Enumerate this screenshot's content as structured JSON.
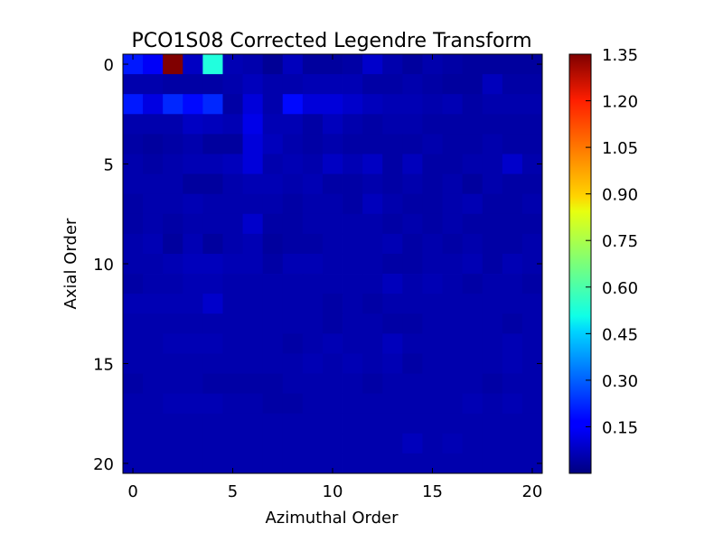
{
  "chart_data": {
    "type": "heatmap",
    "title": "PCO1S08 Corrected Legendre Transform",
    "xlabel": "Azimuthal Order",
    "ylabel": "Axial Order",
    "x_ticks": [
      0,
      5,
      10,
      15,
      20
    ],
    "y_ticks": [
      0,
      5,
      10,
      15,
      20
    ],
    "x_range": [
      0,
      20
    ],
    "y_range": [
      0,
      20
    ],
    "colormap": "jet",
    "colorbar": {
      "vmin": 0.0,
      "vmax": 1.35,
      "ticks": [
        0.15,
        0.3,
        0.45,
        0.6,
        0.75,
        0.9,
        1.05,
        1.2,
        1.35
      ],
      "tick_labels": [
        "0.15",
        "0.30",
        "0.45",
        "0.60",
        "0.75",
        "0.90",
        "1.05",
        "1.20",
        "1.35"
      ]
    },
    "values": [
      [
        0.2,
        0.16,
        1.35,
        0.09,
        0.55,
        0.07,
        0.06,
        0.03,
        0.08,
        0.04,
        0.04,
        0.05,
        0.1,
        0.06,
        0.04,
        0.06,
        0.05,
        0.04,
        0.04,
        0.04,
        0.04
      ],
      [
        0.06,
        0.06,
        0.05,
        0.05,
        0.05,
        0.06,
        0.08,
        0.06,
        0.06,
        0.07,
        0.07,
        0.07,
        0.05,
        0.05,
        0.06,
        0.05,
        0.04,
        0.04,
        0.08,
        0.05,
        0.05
      ],
      [
        0.2,
        0.13,
        0.22,
        0.18,
        0.22,
        0.05,
        0.12,
        0.06,
        0.18,
        0.12,
        0.12,
        0.1,
        0.08,
        0.07,
        0.07,
        0.06,
        0.07,
        0.05,
        0.06,
        0.06,
        0.06
      ],
      [
        0.06,
        0.06,
        0.06,
        0.09,
        0.08,
        0.07,
        0.14,
        0.07,
        0.07,
        0.05,
        0.08,
        0.06,
        0.05,
        0.06,
        0.06,
        0.05,
        0.05,
        0.05,
        0.05,
        0.05,
        0.05
      ],
      [
        0.05,
        0.04,
        0.05,
        0.06,
        0.04,
        0.04,
        0.12,
        0.08,
        0.06,
        0.05,
        0.06,
        0.05,
        0.05,
        0.05,
        0.05,
        0.06,
        0.05,
        0.05,
        0.06,
        0.05,
        0.05
      ],
      [
        0.06,
        0.05,
        0.06,
        0.07,
        0.07,
        0.08,
        0.12,
        0.06,
        0.07,
        0.06,
        0.09,
        0.07,
        0.09,
        0.05,
        0.08,
        0.05,
        0.05,
        0.06,
        0.06,
        0.1,
        0.06
      ],
      [
        0.06,
        0.06,
        0.06,
        0.04,
        0.04,
        0.06,
        0.07,
        0.07,
        0.06,
        0.07,
        0.05,
        0.05,
        0.06,
        0.05,
        0.06,
        0.05,
        0.06,
        0.04,
        0.06,
        0.05,
        0.05
      ],
      [
        0.05,
        0.06,
        0.06,
        0.07,
        0.06,
        0.06,
        0.06,
        0.06,
        0.05,
        0.06,
        0.06,
        0.05,
        0.08,
        0.06,
        0.05,
        0.05,
        0.06,
        0.07,
        0.05,
        0.05,
        0.06
      ],
      [
        0.05,
        0.06,
        0.05,
        0.06,
        0.06,
        0.06,
        0.1,
        0.05,
        0.05,
        0.06,
        0.06,
        0.06,
        0.06,
        0.05,
        0.06,
        0.05,
        0.06,
        0.05,
        0.05,
        0.05,
        0.05
      ],
      [
        0.06,
        0.07,
        0.04,
        0.07,
        0.04,
        0.06,
        0.07,
        0.04,
        0.05,
        0.05,
        0.06,
        0.06,
        0.06,
        0.07,
        0.05,
        0.06,
        0.05,
        0.06,
        0.05,
        0.05,
        0.06
      ],
      [
        0.06,
        0.06,
        0.07,
        0.08,
        0.08,
        0.07,
        0.07,
        0.05,
        0.07,
        0.07,
        0.06,
        0.06,
        0.06,
        0.05,
        0.05,
        0.06,
        0.06,
        0.07,
        0.05,
        0.07,
        0.06
      ],
      [
        0.05,
        0.06,
        0.06,
        0.07,
        0.07,
        0.06,
        0.06,
        0.06,
        0.06,
        0.06,
        0.06,
        0.06,
        0.06,
        0.08,
        0.06,
        0.07,
        0.06,
        0.05,
        0.06,
        0.06,
        0.05
      ],
      [
        0.07,
        0.07,
        0.07,
        0.07,
        0.1,
        0.06,
        0.06,
        0.06,
        0.06,
        0.06,
        0.05,
        0.06,
        0.05,
        0.06,
        0.06,
        0.06,
        0.06,
        0.06,
        0.06,
        0.06,
        0.06
      ],
      [
        0.06,
        0.06,
        0.06,
        0.06,
        0.06,
        0.06,
        0.06,
        0.06,
        0.06,
        0.06,
        0.05,
        0.06,
        0.06,
        0.05,
        0.05,
        0.06,
        0.06,
        0.06,
        0.06,
        0.05,
        0.06
      ],
      [
        0.06,
        0.06,
        0.07,
        0.07,
        0.07,
        0.06,
        0.06,
        0.06,
        0.05,
        0.06,
        0.07,
        0.06,
        0.06,
        0.08,
        0.06,
        0.06,
        0.06,
        0.06,
        0.06,
        0.07,
        0.06
      ],
      [
        0.06,
        0.06,
        0.06,
        0.06,
        0.06,
        0.06,
        0.06,
        0.06,
        0.06,
        0.07,
        0.06,
        0.07,
        0.06,
        0.07,
        0.05,
        0.06,
        0.06,
        0.06,
        0.06,
        0.07,
        0.06
      ],
      [
        0.05,
        0.06,
        0.06,
        0.06,
        0.05,
        0.05,
        0.05,
        0.05,
        0.06,
        0.06,
        0.06,
        0.06,
        0.05,
        0.06,
        0.06,
        0.06,
        0.06,
        0.06,
        0.05,
        0.06,
        0.06
      ],
      [
        0.06,
        0.06,
        0.07,
        0.07,
        0.07,
        0.06,
        0.06,
        0.05,
        0.05,
        0.06,
        0.06,
        0.06,
        0.06,
        0.06,
        0.06,
        0.06,
        0.06,
        0.07,
        0.06,
        0.07,
        0.06
      ],
      [
        0.06,
        0.06,
        0.06,
        0.06,
        0.06,
        0.06,
        0.06,
        0.06,
        0.06,
        0.06,
        0.06,
        0.06,
        0.06,
        0.06,
        0.06,
        0.06,
        0.06,
        0.06,
        0.06,
        0.06,
        0.06
      ],
      [
        0.06,
        0.06,
        0.06,
        0.06,
        0.06,
        0.06,
        0.06,
        0.06,
        0.06,
        0.06,
        0.06,
        0.06,
        0.06,
        0.06,
        0.08,
        0.06,
        0.07,
        0.06,
        0.06,
        0.06,
        0.06
      ],
      [
        0.06,
        0.06,
        0.06,
        0.06,
        0.06,
        0.06,
        0.06,
        0.06,
        0.06,
        0.06,
        0.06,
        0.06,
        0.06,
        0.06,
        0.06,
        0.06,
        0.06,
        0.06,
        0.06,
        0.06,
        0.06
      ]
    ]
  }
}
